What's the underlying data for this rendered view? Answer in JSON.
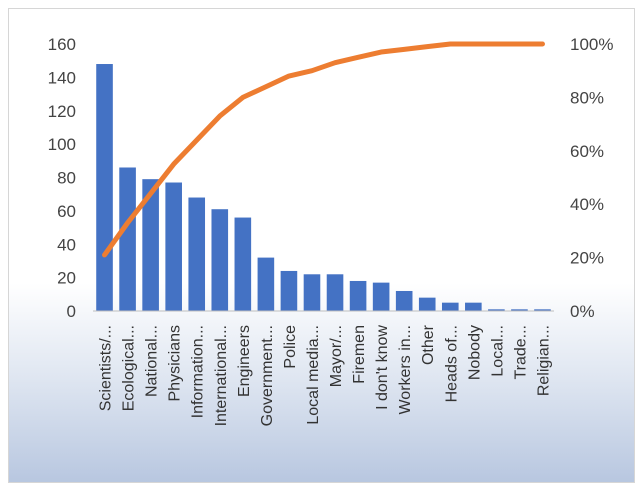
{
  "chart_data": {
    "type": "bar",
    "categories": [
      "Scientists/...",
      "Ecological...",
      "National...",
      "Physicians",
      "Information...",
      "International...",
      "Engineers",
      "Government...",
      "Police",
      "Local media...",
      "Mayor/...",
      "Firemen",
      "I don't know",
      "Workers in...",
      "Other",
      "Heads of...",
      "Nobody",
      "Local...",
      "Trade...",
      "Religian..."
    ],
    "series": [
      {
        "type": "bar",
        "axis": "left",
        "color": "#4472c4",
        "values": [
          148,
          86,
          79,
          77,
          68,
          61,
          56,
          32,
          24,
          22,
          22,
          18,
          17,
          12,
          8,
          5,
          5,
          1,
          1,
          1
        ]
      },
      {
        "type": "line",
        "axis": "right",
        "color": "#ed7d31",
        "values": [
          21,
          33,
          44,
          55,
          64,
          73,
          80,
          84,
          88,
          90,
          93,
          95,
          97,
          98,
          99,
          100,
          100,
          100,
          100,
          100
        ]
      }
    ],
    "y_left": {
      "min": 0,
      "max": 160,
      "step": 20,
      "ticks": [
        "0",
        "20",
        "40",
        "60",
        "80",
        "100",
        "120",
        "140",
        "160"
      ]
    },
    "y_right": {
      "min": 0,
      "max": 100,
      "step": 20,
      "ticks": [
        "0%",
        "20%",
        "40%",
        "60%",
        "80%",
        "100%"
      ]
    },
    "grid": false,
    "legend": "none",
    "title": "",
    "xlabel": "",
    "ylabel": ""
  }
}
